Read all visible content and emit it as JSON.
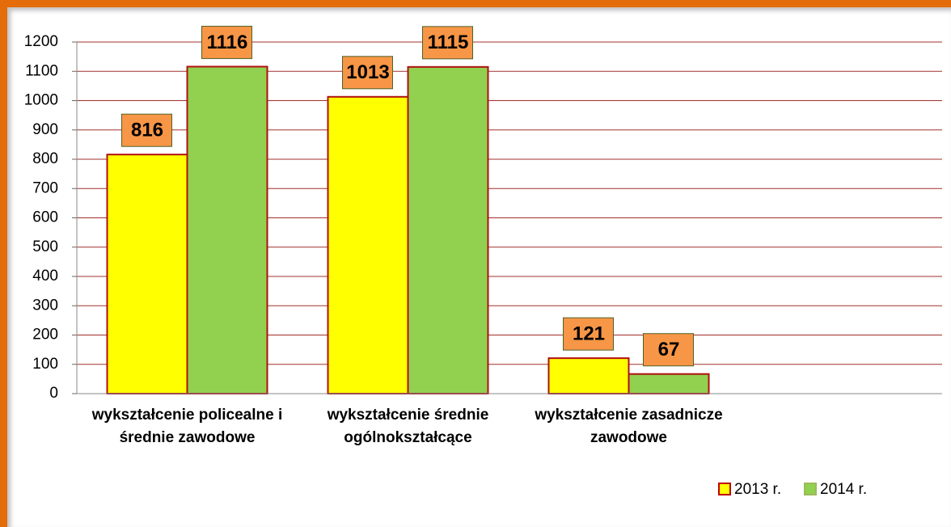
{
  "chart_data": {
    "type": "bar",
    "categories": [
      "wykształcenie policealne i średnie zawodowe",
      "wykształcenie średnie ogólnokształcące",
      "wykształcenie zasadnicze zawodowe"
    ],
    "series": [
      {
        "name": "2013 r.",
        "color": "#ffff00",
        "values": [
          816,
          1013,
          121
        ]
      },
      {
        "name": "2014 r.",
        "color": "#92d050",
        "values": [
          1116,
          1115,
          67
        ]
      }
    ],
    "ylim": [
      0,
      1200
    ],
    "yticks": [
      0,
      100,
      200,
      300,
      400,
      500,
      600,
      700,
      800,
      900,
      1000,
      1100,
      1200
    ],
    "grid": true,
    "legend": "bottom-right"
  }
}
